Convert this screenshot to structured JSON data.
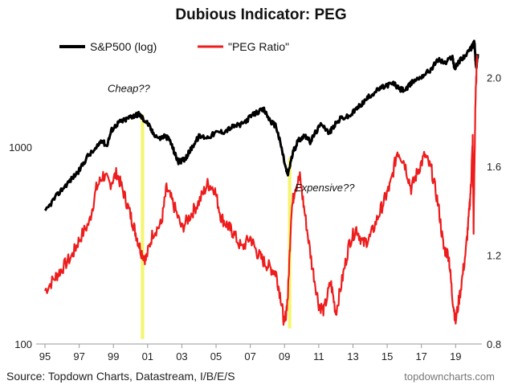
{
  "chart_data": {
    "type": "line",
    "title": "Dubious Indicator: PEG",
    "legend": [
      {
        "name": "S&P500 (log)",
        "color": "#000000"
      },
      {
        "name": "\"PEG Ratio\"",
        "color": "#ee1c1c"
      }
    ],
    "x_range": [
      1995,
      2020.3
    ],
    "x_tick_labels": [
      "95",
      "97",
      "99",
      "01",
      "03",
      "05",
      "07",
      "09",
      "11",
      "13",
      "15",
      "17",
      "19"
    ],
    "x_tick_values": [
      1995,
      1997,
      1999,
      2001,
      2003,
      2005,
      2007,
      2009,
      2011,
      2013,
      2015,
      2017,
      2019
    ],
    "y_left": {
      "scale": "log",
      "range": [
        100,
        4200
      ],
      "tick_labels": [
        "100",
        "1000"
      ],
      "tick_values": [
        100,
        1000
      ]
    },
    "y_right": {
      "scale": "linear",
      "range": [
        0.8,
        2.24
      ],
      "tick_labels": [
        "0.8",
        "1.2",
        "1.6",
        "2.0"
      ],
      "tick_values": [
        0.8,
        1.2,
        1.6,
        2.0
      ]
    },
    "series": [
      {
        "name": "S&P500 (log)",
        "axis": "left",
        "color": "#000000",
        "x": [
          1995.0,
          1995.5,
          1996.0,
          1996.5,
          1997.0,
          1997.5,
          1998.0,
          1998.3,
          1998.6,
          1998.9,
          1999.3,
          1999.6,
          2000.0,
          2000.2,
          2000.5,
          2000.7,
          2001.0,
          2001.3,
          2001.7,
          2002.0,
          2002.3,
          2002.6,
          2002.8,
          2003.1,
          2003.3,
          2003.6,
          2004.0,
          2004.5,
          2005.0,
          2005.5,
          2006.0,
          2006.5,
          2007.0,
          2007.4,
          2007.8,
          2008.2,
          2008.5,
          2008.8,
          2009.1,
          2009.2,
          2009.5,
          2009.8,
          2010.2,
          2010.5,
          2010.8,
          2011.2,
          2011.6,
          2011.9,
          2012.3,
          2012.8,
          2013.2,
          2013.6,
          2014.0,
          2014.5,
          2015.0,
          2015.4,
          2015.7,
          2016.1,
          2016.5,
          2017.0,
          2017.5,
          2018.0,
          2018.4,
          2018.8,
          2018.95,
          2019.3,
          2019.7,
          2019.95,
          2020.1,
          2020.2,
          2020.3
        ],
        "values": [
          465,
          540,
          610,
          680,
          760,
          900,
          980,
          1090,
          1010,
          1220,
          1330,
          1360,
          1420,
          1440,
          1470,
          1400,
          1320,
          1180,
          1100,
          1140,
          1080,
          920,
          840,
          860,
          900,
          1000,
          1130,
          1120,
          1180,
          1200,
          1270,
          1300,
          1420,
          1500,
          1540,
          1340,
          1280,
          1010,
          760,
          730,
          940,
          1080,
          1150,
          1060,
          1180,
          1320,
          1170,
          1280,
          1400,
          1430,
          1560,
          1680,
          1820,
          1960,
          2060,
          2100,
          1960,
          1950,
          2150,
          2280,
          2450,
          2780,
          2650,
          2900,
          2500,
          2790,
          2980,
          3230,
          3380,
          2480,
          2960
        ]
      },
      {
        "name": "\"PEG Ratio\"",
        "axis": "right",
        "color": "#ee1c1c",
        "x": [
          1995.0,
          1995.6,
          1996.0,
          1996.6,
          1997.0,
          1997.6,
          1998.0,
          1998.4,
          1998.8,
          1999.2,
          1999.6,
          2000.0,
          2000.3,
          2000.6,
          2000.9,
          2001.3,
          2001.8,
          2002.1,
          2002.5,
          2003.0,
          2003.5,
          2004.0,
          2004.5,
          2004.9,
          2005.3,
          2005.7,
          2006.0,
          2006.5,
          2007.0,
          2007.4,
          2007.8,
          2008.2,
          2008.5,
          2008.8,
          2009.0,
          2009.2,
          2009.4,
          2009.6,
          2009.9,
          2010.2,
          2010.6,
          2011.0,
          2011.3,
          2011.7,
          2012.0,
          2012.4,
          2012.8,
          2013.2,
          2013.6,
          2014.0,
          2014.5,
          2014.9,
          2015.2,
          2015.6,
          2016.0,
          2016.4,
          2016.8,
          2017.2,
          2017.6,
          2018.0,
          2018.3,
          2018.6,
          2018.8,
          2019.0,
          2019.3,
          2019.6,
          2019.8,
          2019.9,
          2020.0,
          2020.05,
          2020.15,
          2020.25
        ],
        "values": [
          1.04,
          1.1,
          1.14,
          1.2,
          1.27,
          1.35,
          1.5,
          1.56,
          1.52,
          1.57,
          1.48,
          1.38,
          1.3,
          1.22,
          1.18,
          1.3,
          1.34,
          1.5,
          1.43,
          1.32,
          1.38,
          1.44,
          1.52,
          1.5,
          1.37,
          1.33,
          1.3,
          1.23,
          1.28,
          1.21,
          1.17,
          1.14,
          1.12,
          1.0,
          0.88,
          1.02,
          1.4,
          1.5,
          1.55,
          1.38,
          1.16,
          0.98,
          0.95,
          1.08,
          0.94,
          1.1,
          1.26,
          1.32,
          1.25,
          1.28,
          1.38,
          1.46,
          1.52,
          1.67,
          1.62,
          1.5,
          1.58,
          1.65,
          1.58,
          1.42,
          1.23,
          1.2,
          1.02,
          0.9,
          1.05,
          1.22,
          1.4,
          1.52,
          1.72,
          1.32,
          1.86,
          2.1
        ]
      }
    ],
    "highlight_bands": [
      {
        "x_start": 2000.6,
        "x_end": 2000.8,
        "y_top": 1460,
        "y_bottom": 106,
        "color": "#f4f463"
      },
      {
        "x_start": 2009.2,
        "x_end": 2009.4,
        "y_top": 880,
        "y_bottom": 120,
        "color": "#f4f463"
      }
    ],
    "annotations": [
      {
        "text": "Cheap??",
        "x": 1999.9,
        "y": 1900
      },
      {
        "text": "Expensive??",
        "x": 2009.6,
        "y": 595
      }
    ]
  },
  "footer": {
    "source": "Source: Topdown Charts, Datastream, I/B/E/S",
    "site": "topdowncharts.com"
  }
}
